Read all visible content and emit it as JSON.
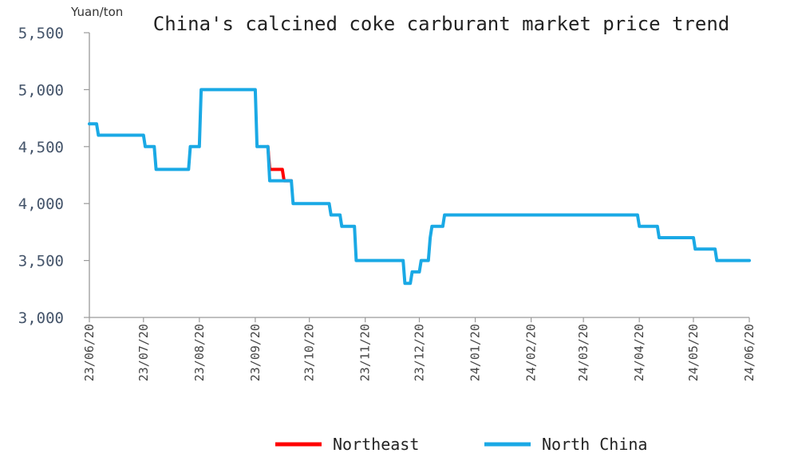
{
  "chart_data": {
    "type": "line",
    "title": "China's calcined coke carburant market price trend",
    "ylabel": "Yuan/ton",
    "ylim": [
      3000,
      5500
    ],
    "yticks": [
      "3,000",
      "3,500",
      "4,000",
      "4,500",
      "5,000",
      "5,500"
    ],
    "xticks": [
      "23/06/20",
      "23/07/20",
      "23/08/20",
      "23/09/20",
      "23/10/20",
      "23/11/20",
      "23/12/20",
      "24/01/20",
      "24/02/20",
      "24/03/20",
      "24/04/20",
      "24/05/20",
      "24/06/20"
    ],
    "grid": false,
    "legend_position": "bottom",
    "series": [
      {
        "name": "Northeast",
        "color": "#ff0000",
        "points": [
          [
            "2023-09-27",
            4500
          ],
          [
            "2023-09-28",
            4300
          ],
          [
            "2023-10-01",
            4300
          ],
          [
            "2023-10-05",
            4300
          ],
          [
            "2023-10-06",
            4200
          ],
          [
            "2023-10-10",
            4200
          ]
        ]
      },
      {
        "name": "North China",
        "color": "#1aa9e5",
        "points": [
          [
            "2023-06-20",
            4700
          ],
          [
            "2023-06-24",
            4700
          ],
          [
            "2023-06-25",
            4600
          ],
          [
            "2023-07-20",
            4600
          ],
          [
            "2023-07-21",
            4500
          ],
          [
            "2023-07-26",
            4500
          ],
          [
            "2023-07-27",
            4300
          ],
          [
            "2023-08-14",
            4300
          ],
          [
            "2023-08-15",
            4500
          ],
          [
            "2023-08-20",
            4500
          ],
          [
            "2023-08-21",
            5000
          ],
          [
            "2023-09-20",
            5000
          ],
          [
            "2023-09-21",
            4500
          ],
          [
            "2023-09-27",
            4500
          ],
          [
            "2023-09-28",
            4200
          ],
          [
            "2023-10-10",
            4200
          ],
          [
            "2023-10-11",
            4000
          ],
          [
            "2023-10-31",
            4000
          ],
          [
            "2023-11-01",
            3900
          ],
          [
            "2023-11-06",
            3900
          ],
          [
            "2023-11-07",
            3800
          ],
          [
            "2023-11-14",
            3800
          ],
          [
            "2023-11-15",
            3500
          ],
          [
            "2023-12-11",
            3500
          ],
          [
            "2023-12-12",
            3300
          ],
          [
            "2023-12-15",
            3300
          ],
          [
            "2023-12-16",
            3400
          ],
          [
            "2023-12-20",
            3400
          ],
          [
            "2023-12-21",
            3500
          ],
          [
            "2023-12-25",
            3500
          ],
          [
            "2023-12-26",
            3700
          ],
          [
            "2023-12-27",
            3800
          ],
          [
            "2024-01-02",
            3800
          ],
          [
            "2024-01-03",
            3900
          ],
          [
            "2024-04-19",
            3900
          ],
          [
            "2024-04-20",
            3800
          ],
          [
            "2024-04-30",
            3800
          ],
          [
            "2024-05-01",
            3700
          ],
          [
            "2024-05-20",
            3700
          ],
          [
            "2024-05-21",
            3600
          ],
          [
            "2024-06-01",
            3600
          ],
          [
            "2024-06-02",
            3500
          ],
          [
            "2024-06-20",
            3500
          ]
        ]
      }
    ]
  }
}
